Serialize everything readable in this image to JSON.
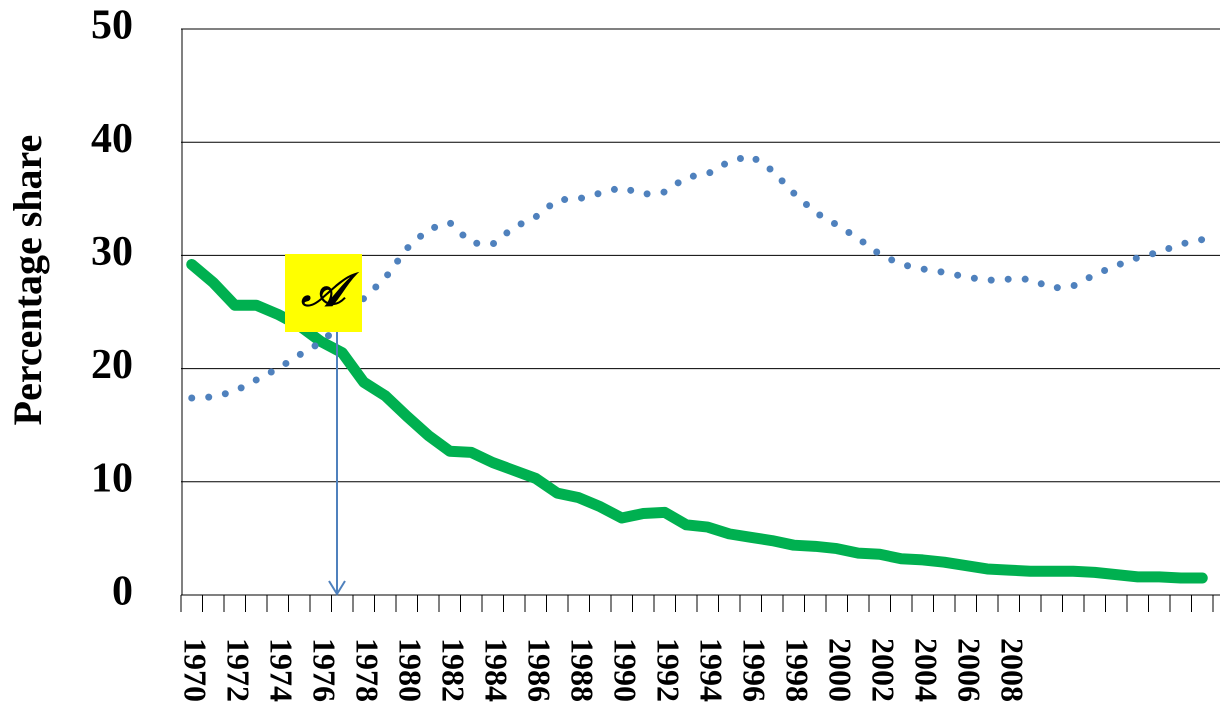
{
  "chart_data": {
    "type": "line",
    "y_label": "Percentage share",
    "categories": [
      "1970",
      null,
      "1972",
      null,
      "1974",
      null,
      "1976",
      null,
      "1978",
      null,
      "1980",
      null,
      "1982",
      null,
      "1984",
      null,
      "1986",
      null,
      "1988",
      null,
      "1990",
      null,
      "1992",
      null,
      "1994",
      null,
      "1996",
      null,
      "1998",
      null,
      "2000",
      null,
      "2002",
      null,
      "2004",
      null,
      "2006",
      null,
      "2008",
      null,
      null,
      null,
      null,
      null,
      null,
      null,
      null,
      null
    ],
    "series": [
      {
        "color": "#00b050",
        "style": "solid",
        "values": [
          29.2,
          27.6,
          25.6,
          25.6,
          24.8,
          23.8,
          22.4,
          21.4,
          18.8,
          17.6,
          15.8,
          14.1,
          12.7,
          12.6,
          11.7,
          11.0,
          10.3,
          9.0,
          8.6,
          7.8,
          6.8,
          7.2,
          7.3,
          6.2,
          6.0,
          5.4,
          5.1,
          4.8,
          4.4,
          4.3,
          4.1,
          3.7,
          3.6,
          3.2,
          3.1,
          2.9,
          2.6,
          2.3,
          2.2,
          2.1,
          2.1,
          2.1,
          2.0,
          1.8,
          1.6,
          1.6,
          1.5,
          1.5
        ]
      },
      {
        "color": "#4f81bd",
        "style": "dotted",
        "values": [
          17.4,
          17.5,
          18.0,
          19.0,
          20.0,
          21.2,
          22.3,
          24.0,
          26.2,
          28.0,
          30.6,
          32.3,
          32.9,
          31.1,
          31.0,
          32.5,
          33.4,
          34.9,
          35.0,
          35.5,
          36.0,
          35.4,
          35.6,
          36.9,
          37.2,
          38.3,
          38.8,
          37.5,
          35.5,
          33.8,
          32.7,
          31.5,
          30.1,
          29.2,
          28.8,
          28.5,
          28.1,
          27.8,
          27.9,
          27.9,
          27.1,
          27.3,
          28.3,
          29.1,
          29.8,
          30.3,
          31.0,
          31.4
        ]
      }
    ],
    "annotation": "𝒜",
    "ylim": [
      0,
      50
    ],
    "yticks": [
      0,
      10,
      20,
      30,
      40,
      50
    ],
    "grid": true
  }
}
